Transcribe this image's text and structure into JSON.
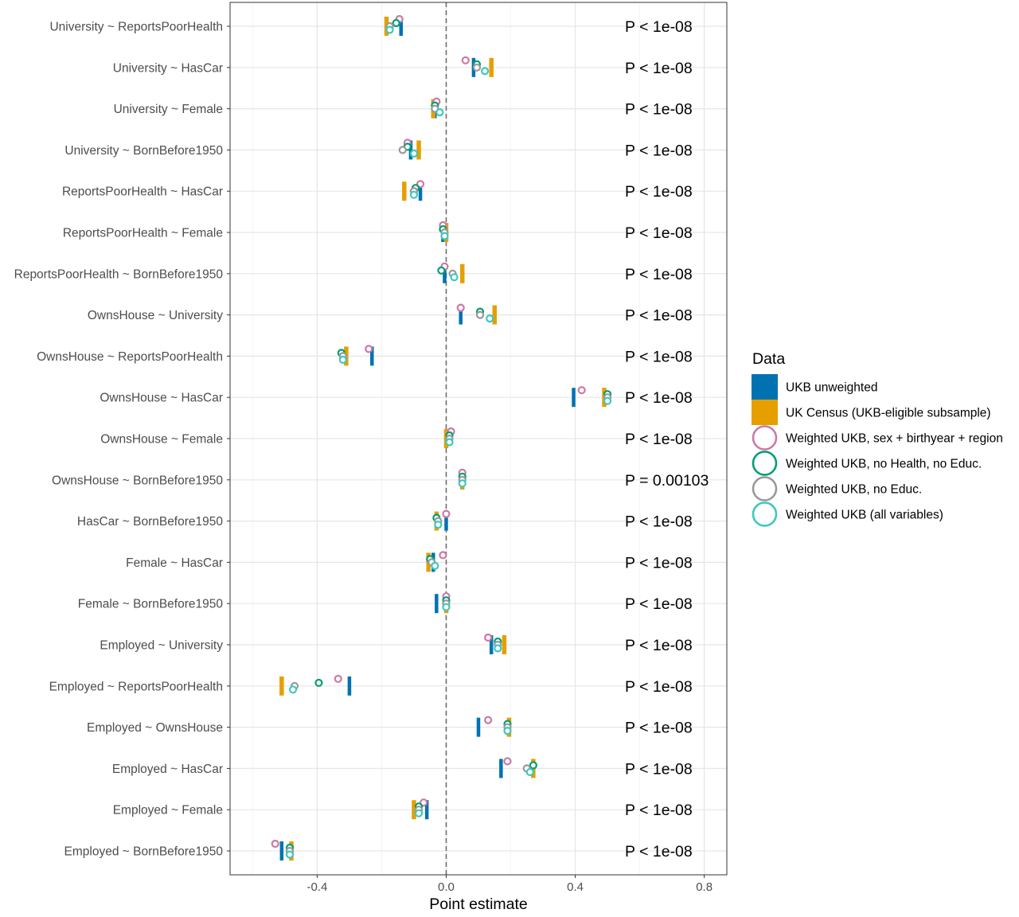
{
  "chart_data": {
    "type": "scatter",
    "title": "",
    "xlabel": "Point estimate",
    "ylabel": "",
    "xlim": [
      -0.67,
      0.87
    ],
    "xticks": [
      -0.4,
      0.0,
      0.4,
      0.8
    ],
    "xtick_labels": [
      "-0.4",
      "0.0",
      "0.4",
      "0.8"
    ],
    "grid": true,
    "reference_line_x": 0,
    "legend": {
      "title": "Data",
      "position": "right",
      "entries": [
        "UKB unweighted",
        "UK Census (UKB-eligible subsample)",
        "Weighted UKB, sex + birthyear + region",
        "Weighted UKB, no Health, no Educ.",
        "Weighted UKB, no Educ.",
        "Weighted UKB (all variables)"
      ]
    },
    "series_colors": [
      "#0072b2",
      "#e69f00",
      "#cc79a7",
      "#009e73",
      "#999999",
      "#3ec7c0"
    ],
    "series_shapes": [
      "bar",
      "bar",
      "circle",
      "circle",
      "circle",
      "circle"
    ],
    "categories": [
      "University ~ ReportsPoorHealth",
      "University ~ HasCar",
      "University ~ Female",
      "University ~ BornBefore1950",
      "ReportsPoorHealth ~ HasCar",
      "ReportsPoorHealth ~ Female",
      "ReportsPoorHealth ~ BornBefore1950",
      "OwnsHouse ~ University",
      "OwnsHouse ~ ReportsPoorHealth",
      "OwnsHouse ~ HasCar",
      "OwnsHouse ~ Female",
      "OwnsHouse ~ BornBefore1950",
      "HasCar ~ BornBefore1950",
      "Female ~ HasCar",
      "Female ~ BornBefore1950",
      "Employed ~ University",
      "Employed ~ ReportsPoorHealth",
      "Employed ~ OwnsHouse",
      "Employed ~ HasCar",
      "Employed ~ Female",
      "Employed ~ BornBefore1950"
    ],
    "pvalues": [
      "P < 1e-08",
      "P < 1e-08",
      "P < 1e-08",
      "P < 1e-08",
      "P < 1e-08",
      "P < 1e-08",
      "P < 1e-08",
      "P < 1e-08",
      "P < 1e-08",
      "P < 1e-08",
      "P < 1e-08",
      "P = 0.00103",
      "P < 1e-08",
      "P < 1e-08",
      "P < 1e-08",
      "P < 1e-08",
      "P < 1e-08",
      "P < 1e-08",
      "P < 1e-08",
      "P < 1e-08",
      "P < 1e-08"
    ],
    "series": [
      {
        "name": "UKB unweighted",
        "values": [
          -0.14,
          0.085,
          -0.035,
          -0.11,
          -0.08,
          -0.01,
          -0.005,
          0.045,
          -0.23,
          0.395,
          0.0,
          0.05,
          0.0,
          -0.04,
          -0.03,
          0.14,
          -0.3,
          0.1,
          0.17,
          -0.06,
          -0.51
        ]
      },
      {
        "name": "UK Census (UKB-eligible subsample)",
        "values": [
          -0.185,
          0.14,
          -0.04,
          -0.085,
          -0.13,
          0.0,
          0.05,
          0.15,
          -0.31,
          0.49,
          0.0,
          0.05,
          -0.03,
          -0.055,
          0.0,
          0.18,
          -0.51,
          0.195,
          0.27,
          -0.1,
          -0.48
        ]
      },
      {
        "name": "Weighted UKB, sex + birthyear + region",
        "values": [
          -0.145,
          0.06,
          -0.03,
          -0.12,
          -0.08,
          -0.01,
          -0.005,
          0.045,
          -0.24,
          0.42,
          0.015,
          0.05,
          0.0,
          -0.01,
          0.0,
          0.13,
          -0.335,
          0.13,
          0.19,
          -0.07,
          -0.53
        ]
      },
      {
        "name": "Weighted UKB, no Health, no Educ.",
        "values": [
          -0.155,
          0.095,
          -0.035,
          -0.12,
          -0.095,
          -0.01,
          -0.015,
          0.105,
          -0.325,
          0.5,
          0.01,
          0.05,
          -0.03,
          -0.05,
          0.0,
          0.16,
          -0.395,
          0.19,
          0.27,
          -0.085,
          -0.485
        ]
      },
      {
        "name": "Weighted UKB, no Educ.",
        "values": [
          -0.175,
          0.095,
          -0.035,
          -0.135,
          -0.1,
          -0.005,
          0.02,
          0.105,
          -0.32,
          0.5,
          0.01,
          0.05,
          -0.025,
          -0.045,
          0.0,
          0.16,
          -0.47,
          0.19,
          0.25,
          -0.085,
          -0.485
        ]
      },
      {
        "name": "Weighted UKB (all variables)",
        "values": [
          -0.175,
          0.12,
          -0.02,
          -0.1,
          -0.1,
          -0.005,
          0.025,
          0.135,
          -0.32,
          0.5,
          0.01,
          0.05,
          -0.025,
          -0.035,
          0.0,
          0.16,
          -0.475,
          0.19,
          0.26,
          -0.085,
          -0.485
        ]
      }
    ]
  }
}
